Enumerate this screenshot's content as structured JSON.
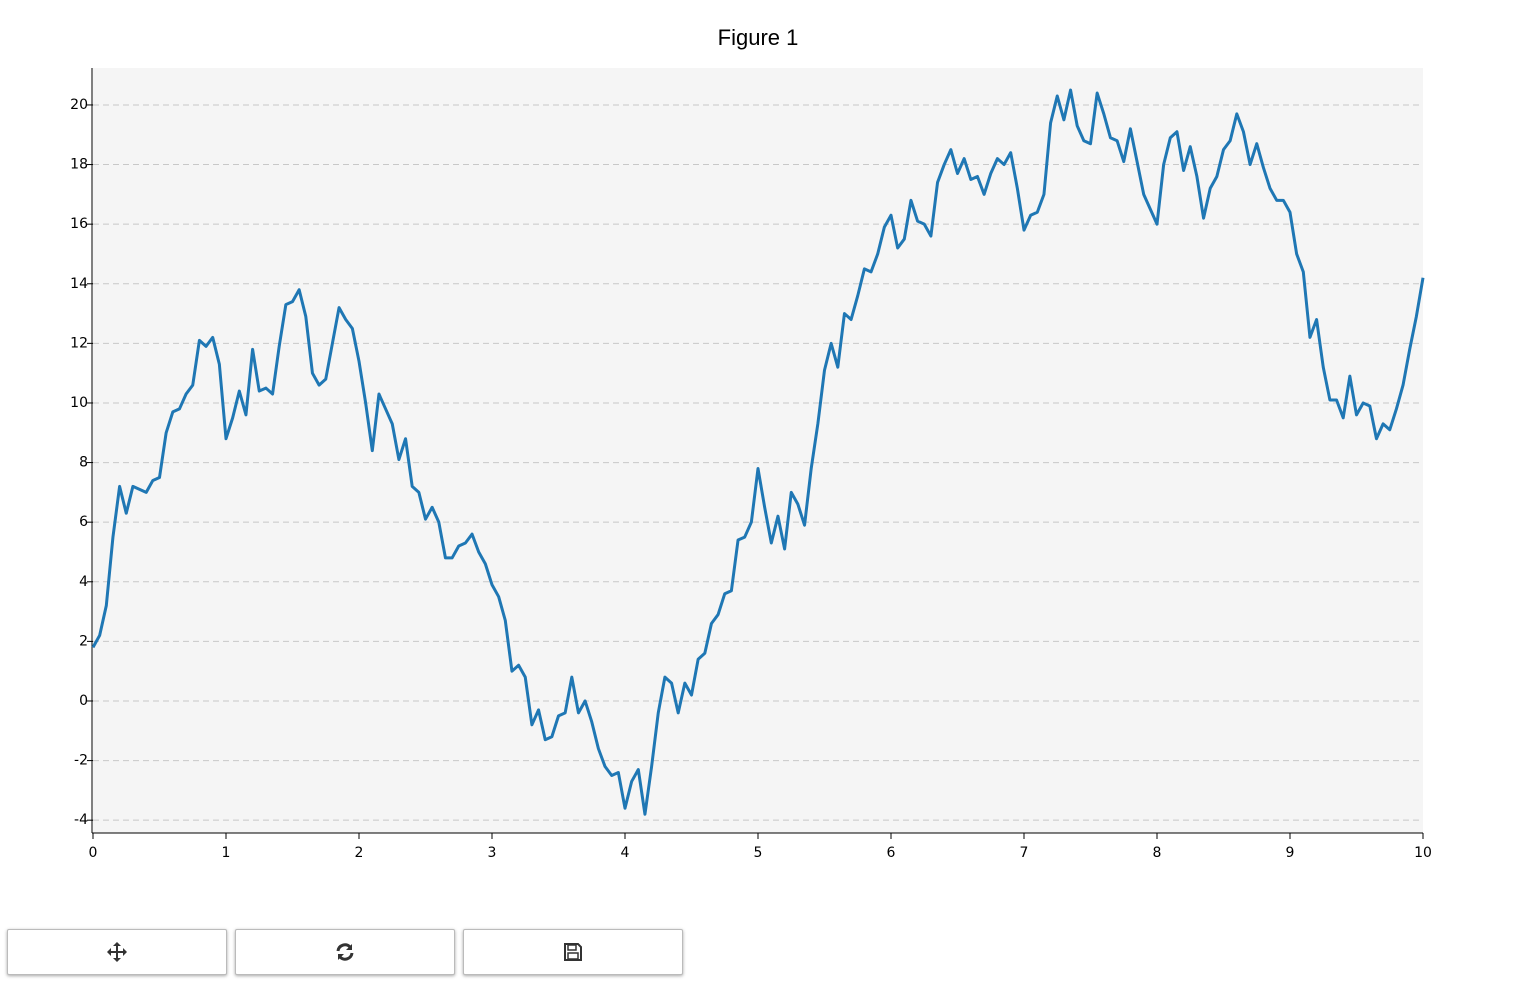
{
  "chart_data": {
    "type": "line",
    "title": "Figure 1",
    "color": "#1f77b4",
    "grid": true,
    "x": [
      0,
      0.05,
      0.1,
      0.15,
      0.2,
      0.25,
      0.3,
      0.35,
      0.4,
      0.45,
      0.5,
      0.55,
      0.6,
      0.65,
      0.7,
      0.75,
      0.8,
      0.85,
      0.9,
      0.95,
      1,
      1.05,
      1.1,
      1.15,
      1.2,
      1.25,
      1.3,
      1.35,
      1.4,
      1.45,
      1.5,
      1.55,
      1.6,
      1.65,
      1.7,
      1.75,
      1.8,
      1.85,
      1.9,
      1.95,
      2,
      2.05,
      2.1,
      2.15,
      2.2,
      2.25,
      2.3,
      2.35,
      2.4,
      2.45,
      2.5,
      2.55,
      2.6,
      2.65,
      2.7,
      2.75,
      2.8,
      2.85,
      2.9,
      2.95,
      3,
      3.05,
      3.1,
      3.15,
      3.2,
      3.25,
      3.3,
      3.35,
      3.4,
      3.45,
      3.5,
      3.55,
      3.6,
      3.65,
      3.7,
      3.75,
      3.8,
      3.85,
      3.9,
      3.95,
      4,
      4.05,
      4.1,
      4.15,
      4.2,
      4.25,
      4.3,
      4.35,
      4.4,
      4.45,
      4.5,
      4.55,
      4.6,
      4.65,
      4.7,
      4.75,
      4.8,
      4.85,
      4.9,
      4.95,
      5,
      5.05,
      5.1,
      5.15,
      5.2,
      5.25,
      5.3,
      5.35,
      5.4,
      5.45,
      5.5,
      5.55,
      5.6,
      5.65,
      5.7,
      5.75,
      5.8,
      5.85,
      5.9,
      5.95,
      6,
      6.05,
      6.1,
      6.15,
      6.2,
      6.25,
      6.3,
      6.35,
      6.4,
      6.45,
      6.5,
      6.55,
      6.6,
      6.65,
      6.7,
      6.75,
      6.8,
      6.85,
      6.9,
      6.95,
      7,
      7.05,
      7.1,
      7.15,
      7.2,
      7.25,
      7.3,
      7.35,
      7.4,
      7.45,
      7.5,
      7.55,
      7.6,
      7.65,
      7.7,
      7.75,
      7.8,
      7.85,
      7.9,
      7.95,
      8,
      8.05,
      8.1,
      8.15,
      8.2,
      8.25,
      8.3,
      8.35,
      8.4,
      8.45,
      8.5,
      8.55,
      8.6,
      8.65,
      8.7,
      8.75,
      8.8,
      8.85,
      8.9,
      8.95,
      9,
      9.05,
      9.1,
      9.15,
      9.2,
      9.25,
      9.3,
      9.35,
      9.4,
      9.45,
      9.5,
      9.55,
      9.6,
      9.65,
      9.7,
      9.75,
      9.8,
      9.85,
      9.9,
      9.95,
      10
    ],
    "values": [
      1.8,
      2.2,
      3.2,
      5.5,
      7.2,
      6.3,
      7.2,
      7.1,
      7.0,
      7.4,
      7.5,
      9.0,
      9.7,
      9.8,
      10.3,
      10.6,
      12.1,
      11.9,
      12.2,
      11.3,
      8.8,
      9.5,
      10.4,
      9.6,
      11.8,
      10.4,
      10.5,
      10.3,
      11.9,
      13.3,
      13.4,
      13.8,
      12.9,
      11.0,
      10.6,
      10.8,
      12.0,
      13.2,
      12.8,
      12.5,
      11.4,
      10.0,
      8.4,
      10.3,
      9.8,
      9.3,
      8.1,
      8.8,
      7.2,
      7.0,
      6.1,
      6.5,
      6.0,
      4.8,
      4.8,
      5.2,
      5.3,
      5.6,
      5.0,
      4.6,
      3.9,
      3.5,
      2.7,
      1.0,
      1.2,
      0.8,
      -0.8,
      -0.3,
      -1.3,
      -1.2,
      -0.5,
      -0.4,
      0.8,
      -0.4,
      0.0,
      -0.7,
      -1.6,
      -2.2,
      -2.5,
      -2.4,
      -3.6,
      -2.7,
      -2.3,
      -3.8,
      -2.2,
      -0.4,
      0.8,
      0.6,
      -0.4,
      0.6,
      0.2,
      1.4,
      1.6,
      2.6,
      2.9,
      3.6,
      3.7,
      5.4,
      5.5,
      6.0,
      7.8,
      6.5,
      5.3,
      6.2,
      5.1,
      7.0,
      6.6,
      5.9,
      7.8,
      9.3,
      11.1,
      12.0,
      11.2,
      13.0,
      12.8,
      13.6,
      14.5,
      14.4,
      15.0,
      15.9,
      16.3,
      15.2,
      15.5,
      16.8,
      16.1,
      16.0,
      15.6,
      17.4,
      18.0,
      18.5,
      17.7,
      18.2,
      17.5,
      17.6,
      17.0,
      17.7,
      18.2,
      18.0,
      18.4,
      17.2,
      15.8,
      16.3,
      16.4,
      17.0,
      19.4,
      20.3,
      19.5,
      20.5,
      19.3,
      18.8,
      18.7,
      20.4,
      19.7,
      18.9,
      18.8,
      18.1,
      19.2,
      18.1,
      17.0,
      16.5,
      16.0,
      18.0,
      18.9,
      19.1,
      17.8,
      18.6,
      17.6,
      16.2,
      17.2,
      17.6,
      18.5,
      18.8,
      19.7,
      19.1,
      18.0,
      18.7,
      17.9,
      17.2,
      16.8,
      16.8,
      16.4,
      15.0,
      14.4,
      12.2,
      12.8,
      11.2,
      10.1,
      10.1,
      9.5,
      10.9,
      9.6,
      10.0,
      9.9,
      8.8,
      9.3,
      9.1,
      9.8,
      10.6,
      11.8,
      12.9,
      14.2
    ],
    "xlim": [
      0,
      10
    ],
    "xticks": [
      0,
      1,
      2,
      3,
      4,
      5,
      6,
      7,
      8,
      9,
      10
    ],
    "ylim": [
      -4.43,
      21.24
    ],
    "yticks": [
      -4,
      -2,
      0,
      2,
      4,
      6,
      8,
      10,
      12,
      14,
      16,
      18,
      20
    ]
  }
}
